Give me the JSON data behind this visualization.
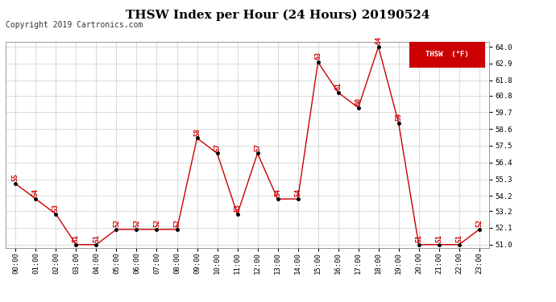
{
  "title": "THSW Index per Hour (24 Hours) 20190524",
  "copyright": "Copyright 2019 Cartronics.com",
  "legend_label": "THSW  (°F)",
  "hours": [
    0,
    1,
    2,
    3,
    4,
    5,
    6,
    7,
    8,
    9,
    10,
    11,
    12,
    13,
    14,
    15,
    16,
    17,
    18,
    19,
    20,
    21,
    22,
    23
  ],
  "values": [
    55,
    54,
    53,
    51,
    51,
    52,
    52,
    52,
    52,
    58,
    57,
    53,
    57,
    54,
    54,
    63,
    61,
    60,
    64,
    59,
    51,
    51,
    51,
    52
  ],
  "hour_labels": [
    "00:00",
    "01:00",
    "02:00",
    "03:00",
    "04:00",
    "05:00",
    "06:00",
    "07:00",
    "08:00",
    "09:00",
    "10:00",
    "11:00",
    "12:00",
    "13:00",
    "14:00",
    "15:00",
    "16:00",
    "17:00",
    "18:00",
    "19:00",
    "20:00",
    "21:00",
    "22:00",
    "23:00"
  ],
  "ylim_min": 50.8,
  "ylim_max": 64.3,
  "yticks": [
    51.0,
    52.1,
    53.2,
    54.2,
    55.3,
    56.4,
    57.5,
    58.6,
    59.7,
    60.8,
    61.8,
    62.9,
    64.0
  ],
  "ytick_labels": [
    "51.0",
    "52.1",
    "53.2",
    "54.2",
    "55.3",
    "56.4",
    "57.5",
    "58.6",
    "59.7",
    "60.8",
    "61.8",
    "62.9",
    "64.0"
  ],
  "line_color": "#cc0000",
  "dot_color": "#000000",
  "label_color": "#cc0000",
  "bg_color": "#ffffff",
  "grid_color": "#cccccc",
  "title_fontsize": 11,
  "copyright_fontsize": 7,
  "label_fontsize": 6,
  "tick_fontsize": 6.5
}
